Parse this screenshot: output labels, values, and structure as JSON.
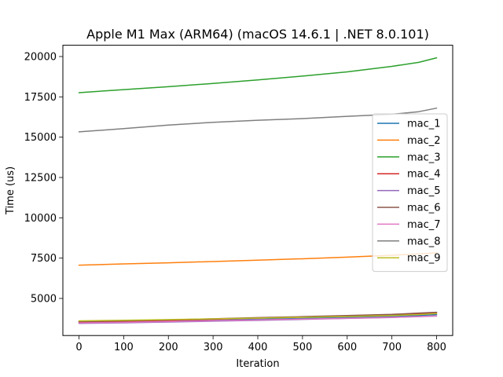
{
  "chart_data": {
    "type": "line",
    "title": "Apple M1 Max (ARM64) (macOS 14.6.1 | .NET 8.0.101)",
    "xlabel": "Iteration",
    "ylabel": "Time (us)",
    "xlim": [
      -36,
      836
    ],
    "ylim": [
      2700,
      20700
    ],
    "xticks": [
      0,
      100,
      200,
      300,
      400,
      500,
      600,
      700,
      800
    ],
    "yticks": [
      5000,
      7500,
      10000,
      12500,
      15000,
      17500,
      20000
    ],
    "legend_position": "right",
    "grid": false,
    "x": [
      0,
      100,
      200,
      300,
      400,
      500,
      600,
      700,
      760,
      800
    ],
    "series": [
      {
        "name": "mac_1",
        "color": "#1f77b4",
        "values": [
          3520,
          3560,
          3610,
          3650,
          3710,
          3760,
          3820,
          3880,
          3940,
          4000
        ]
      },
      {
        "name": "mac_2",
        "color": "#ff7f0e",
        "values": [
          7060,
          7140,
          7210,
          7290,
          7370,
          7460,
          7560,
          7680,
          7760,
          7830
        ]
      },
      {
        "name": "mac_3",
        "color": "#2ca02c",
        "values": [
          17760,
          17950,
          18130,
          18330,
          18550,
          18790,
          19050,
          19390,
          19640,
          19920
        ]
      },
      {
        "name": "mac_4",
        "color": "#d62728",
        "values": [
          3530,
          3580,
          3640,
          3710,
          3780,
          3840,
          3900,
          3970,
          4040,
          4090
        ]
      },
      {
        "name": "mac_5",
        "color": "#9467bd",
        "values": [
          3450,
          3490,
          3540,
          3590,
          3640,
          3700,
          3760,
          3820,
          3870,
          3910
        ]
      },
      {
        "name": "mac_6",
        "color": "#8c564b",
        "values": [
          3560,
          3610,
          3670,
          3740,
          3810,
          3870,
          3940,
          4010,
          4090,
          4140
        ]
      },
      {
        "name": "mac_7",
        "color": "#e377c2",
        "values": [
          3480,
          3520,
          3570,
          3620,
          3670,
          3720,
          3770,
          3830,
          3880,
          3920
        ]
      },
      {
        "name": "mac_8",
        "color": "#7f7f7f",
        "values": [
          15330,
          15530,
          15750,
          15920,
          16050,
          16150,
          16290,
          16420,
          16580,
          16800
        ]
      },
      {
        "name": "mac_9",
        "color": "#bcbd22",
        "values": [
          3610,
          3650,
          3690,
          3730,
          3780,
          3830,
          3880,
          3940,
          4000,
          4060
        ]
      }
    ]
  }
}
